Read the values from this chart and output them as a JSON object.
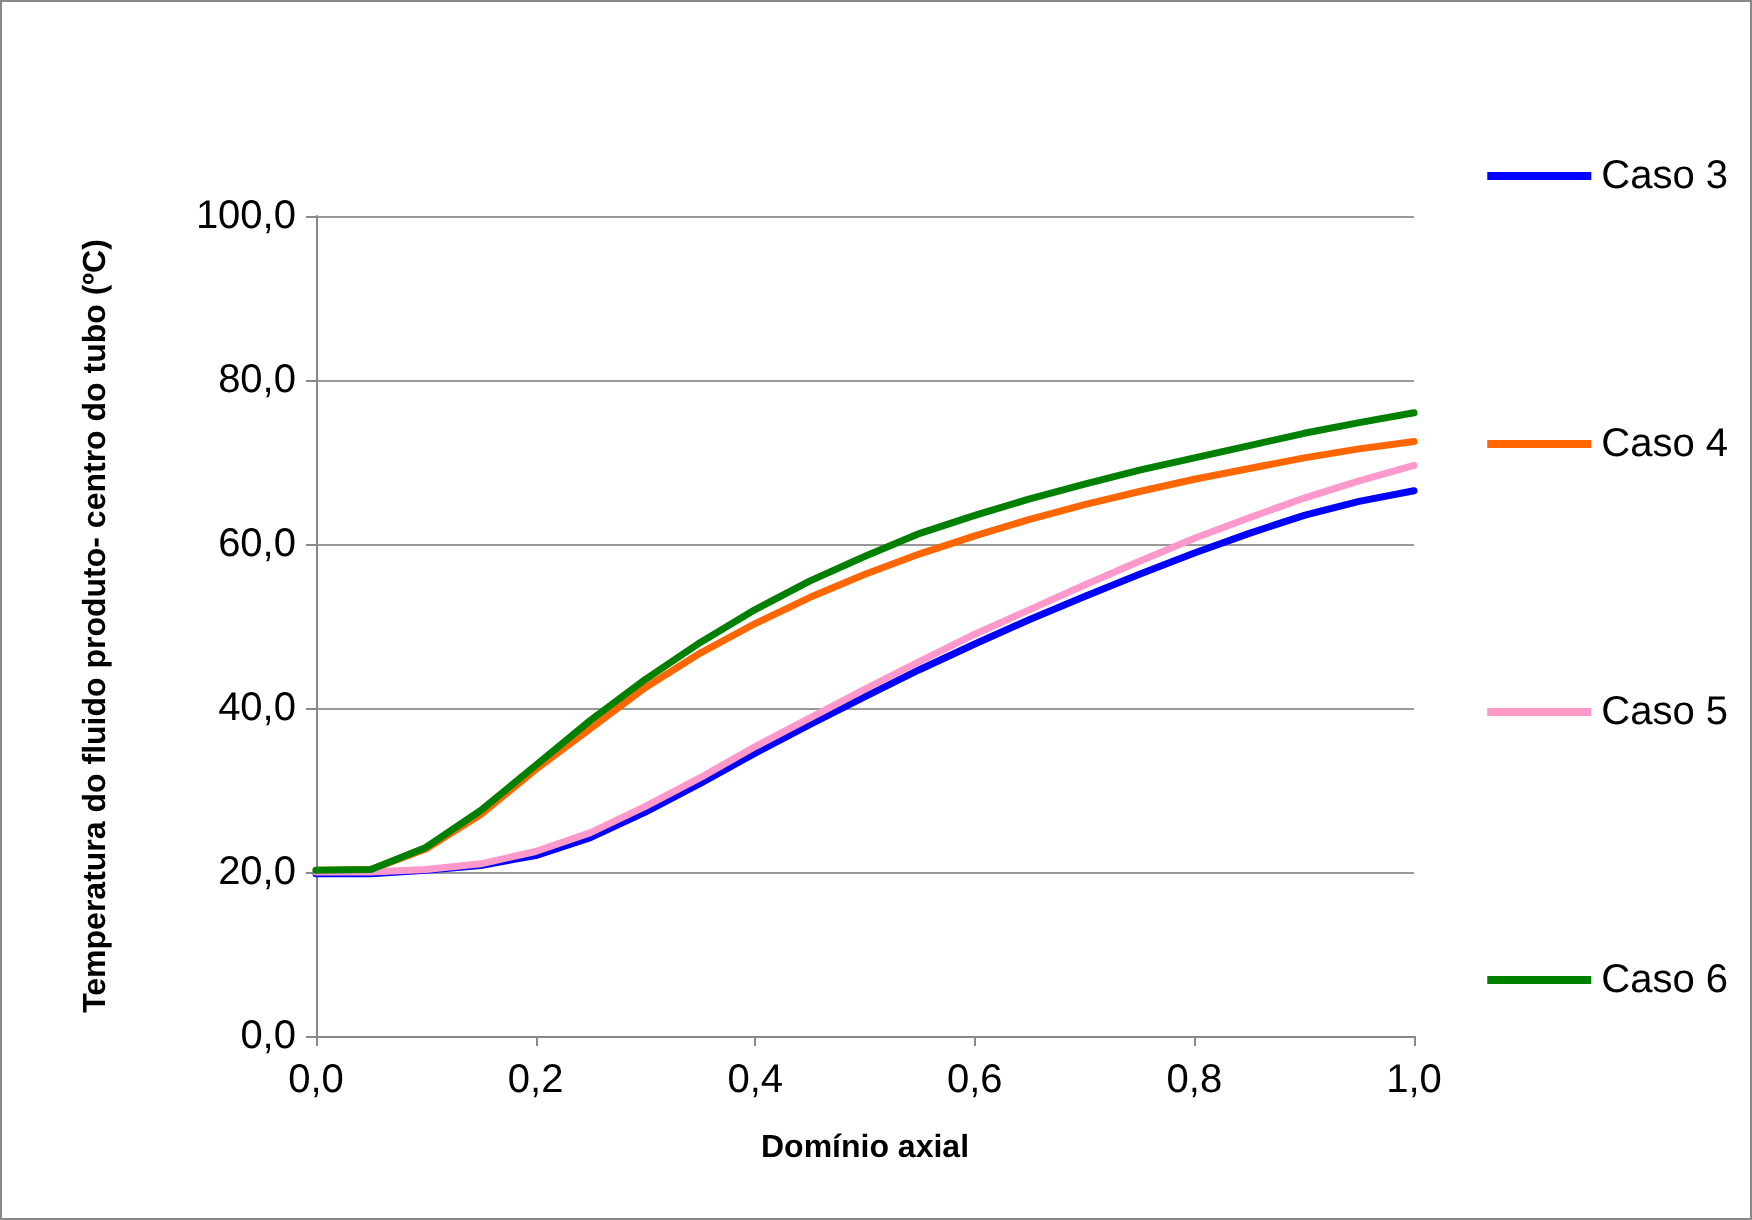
{
  "chart_data": {
    "type": "line",
    "xlabel": "Domínio axial",
    "ylabel": "Temperatura do fluido produto- centro do tubo (ºC)",
    "x": [
      0,
      0.05,
      0.1,
      0.15,
      0.2,
      0.25,
      0.3,
      0.35,
      0.4,
      0.45,
      0.5,
      0.55,
      0.6,
      0.65,
      0.7,
      0.75,
      0.8,
      0.85,
      0.9,
      0.95,
      1.0
    ],
    "series": [
      {
        "name": "Caso 3",
        "color": "#0000ff",
        "values": [
          19.8,
          19.8,
          20.2,
          20.8,
          22,
          24.2,
          27.3,
          30.8,
          34.5,
          38,
          41.4,
          44.7,
          47.8,
          50.8,
          53.6,
          56.3,
          58.9,
          61.3,
          63.5,
          65.2,
          66.5
        ]
      },
      {
        "name": "Caso 4",
        "color": "#ff6600",
        "values": [
          20.2,
          20.3,
          22.8,
          27,
          32.5,
          37.5,
          42.5,
          46.7,
          50.3,
          53.5,
          56.3,
          58.8,
          61,
          63,
          64.8,
          66.4,
          67.9,
          69.2,
          70.5,
          71.6,
          72.5
        ]
      },
      {
        "name": "Caso 5",
        "color": "#ff99cc",
        "values": [
          20,
          20,
          20.3,
          21,
          22.5,
          24.8,
          28,
          31.5,
          35.3,
          38.8,
          42.3,
          45.7,
          49,
          52,
          55,
          57.9,
          60.7,
          63.2,
          65.6,
          67.7,
          69.6
        ]
      },
      {
        "name": "Caso 6",
        "color": "#008000",
        "values": [
          20.2,
          20.3,
          23,
          27.5,
          33,
          38.5,
          43.5,
          48,
          52,
          55.5,
          58.5,
          61.3,
          63.5,
          65.5,
          67.3,
          69,
          70.5,
          72,
          73.5,
          74.8,
          76
        ]
      }
    ],
    "xlim": [
      0,
      1
    ],
    "xticks": [
      {
        "value": 0,
        "label": "0,0"
      },
      {
        "value": 0.2,
        "label": "0,2"
      },
      {
        "value": 0.4,
        "label": "0,4"
      },
      {
        "value": 0.6,
        "label": "0,6"
      },
      {
        "value": 0.8,
        "label": "0,8"
      },
      {
        "value": 1,
        "label": "1,0"
      }
    ],
    "ylim": [
      0,
      100
    ],
    "yticks": [
      {
        "value": 0,
        "label": "0,0"
      },
      {
        "value": 20,
        "label": "20,0"
      },
      {
        "value": 40,
        "label": "40,0"
      },
      {
        "value": 60,
        "label": "60,0"
      },
      {
        "value": 80,
        "label": "80,0"
      },
      {
        "value": 100,
        "label": "100,0"
      }
    ],
    "grid": "y",
    "legend": "right",
    "marker": "none",
    "line_style": "solid"
  }
}
